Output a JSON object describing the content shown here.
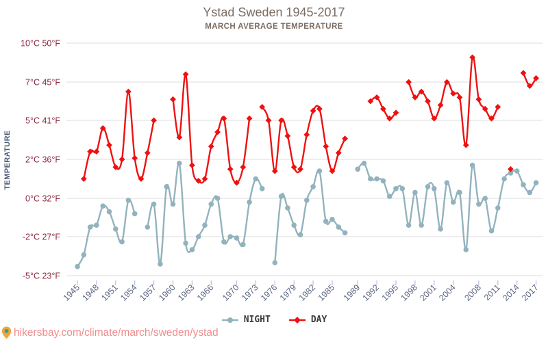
{
  "header": {
    "title": "Ystad Sweden 1945-2017",
    "subtitle": "MARCH AVERAGE TEMPERATURE"
  },
  "axes": {
    "y_title": "TEMPERATURE",
    "y_tick_labels": [
      "10°C 50°F",
      "7°C 45°F",
      "5°C 41°F",
      "2°C 36°F",
      "0°C 32°F",
      "-2°C 27°F",
      "-5°C 23°F"
    ],
    "x_tick_years": [
      1945,
      1948,
      1951,
      1954,
      1957,
      1960,
      1963,
      1966,
      1970,
      1973,
      1976,
      1979,
      1982,
      1985,
      1989,
      1992,
      1995,
      1998,
      2001,
      2004,
      2008,
      2011,
      2014,
      2017
    ]
  },
  "legend": {
    "night": "NIGHT",
    "day": "DAY"
  },
  "footer": {
    "url": "hikersbay.com/climate/march/sweden/ystad"
  },
  "colors": {
    "day": "#ee1111",
    "night": "#92b3bd",
    "grid": "#dcdcdc",
    "y_label": "#8e2840",
    "x_label": "#5a6580",
    "x_tick": "#b9c5dd",
    "title": "#7b6c62",
    "legend_text": "#3d3d3d",
    "footer_link": "#f08b8b",
    "pin_body": "#f2a33c",
    "pin_hole": "#1fa7a0"
  },
  "chart_data": {
    "type": "line",
    "title": "Ystad Sweden 1945-2017",
    "subtitle": "MARCH AVERAGE TEMPERATURE",
    "ylabel": "TEMPERATURE",
    "xlim": [
      1945,
      2017
    ],
    "ylim": [
      -5,
      10
    ],
    "grid": "horizontal-only",
    "legend_position": "bottom-center",
    "y_tick_values": [
      10,
      7,
      5,
      2,
      0,
      -2,
      -5
    ],
    "y_tick_labels": [
      "10°C 50°F",
      "7°C 45°F",
      "5°C 41°F",
      "2°C 36°F",
      "0°C 32°F",
      "-2°C 27°F",
      "-5°C 23°F"
    ],
    "x_tick_years": [
      1945,
      1948,
      1951,
      1954,
      1957,
      1960,
      1963,
      1966,
      1970,
      1973,
      1976,
      1979,
      1982,
      1985,
      1989,
      1992,
      1995,
      1998,
      2001,
      2004,
      2008,
      2011,
      2014,
      2017
    ],
    "note": "values in °C; segments are runs of consecutive yearly points separated by missing-data gaps",
    "series": [
      {
        "name": "NIGHT",
        "color": "#92b3bd",
        "marker": "circle",
        "segments": [
          [
            [
              1945,
              -4.3
            ],
            [
              1946,
              -3.4
            ],
            [
              1947,
              -1.5
            ],
            [
              1948,
              -1.4
            ],
            [
              1949,
              -0.4
            ],
            [
              1950,
              -0.7
            ],
            [
              1951,
              -1.6
            ],
            [
              1952,
              -2.4
            ],
            [
              1953,
              -0.1
            ],
            [
              1954,
              -0.8
            ]
          ],
          [
            [
              1956,
              -1.5
            ],
            [
              1957,
              -0.3
            ],
            [
              1958,
              -4.1
            ],
            [
              1959,
              0.6
            ],
            [
              1960,
              -0.3
            ],
            [
              1961,
              1.8
            ],
            [
              1962,
              -2.5
            ],
            [
              1963,
              -3.0
            ],
            [
              1964,
              -2.0
            ],
            [
              1965,
              -1.4
            ],
            [
              1966,
              -0.3
            ],
            [
              1967,
              0.0
            ],
            [
              1968,
              -2.4
            ],
            [
              1969,
              -2.0
            ],
            [
              1970,
              -2.1
            ],
            [
              1971,
              -2.6
            ],
            [
              1972,
              -0.2
            ],
            [
              1973,
              1.0
            ],
            [
              1974,
              0.5
            ]
          ],
          [
            [
              1976,
              -4.0
            ],
            [
              1977,
              0.1
            ],
            [
              1978,
              -0.5
            ],
            [
              1979,
              -1.4
            ],
            [
              1980,
              -1.9
            ],
            [
              1981,
              -0.1
            ],
            [
              1982,
              0.6
            ],
            [
              1983,
              1.4
            ],
            [
              1984,
              -1.2
            ],
            [
              1985,
              -1.1
            ],
            [
              1986,
              -1.5
            ],
            [
              1987,
              -1.8
            ]
          ],
          [
            [
              1989,
              1.5
            ],
            [
              1990,
              1.8
            ],
            [
              1991,
              1.0
            ],
            [
              1992,
              1.0
            ],
            [
              1993,
              0.9
            ],
            [
              1994,
              0.1
            ],
            [
              1995,
              0.5
            ],
            [
              1996,
              0.5
            ],
            [
              1997,
              -1.4
            ],
            [
              1998,
              0.3
            ],
            [
              1999,
              -1.4
            ],
            [
              2000,
              0.6
            ],
            [
              2001,
              0.5
            ],
            [
              2002,
              -1.6
            ],
            [
              2003,
              0.8
            ],
            [
              2004,
              -0.2
            ],
            [
              2005,
              0.3
            ],
            [
              2006,
              -3.0
            ],
            [
              2007,
              1.7
            ],
            [
              2008,
              -0.3
            ],
            [
              2009,
              0.0
            ],
            [
              2010,
              -1.7
            ],
            [
              2011,
              -0.5
            ],
            [
              2012,
              1.0
            ],
            [
              2013,
              1.3
            ],
            [
              2014,
              1.4
            ],
            [
              2015,
              0.7
            ],
            [
              2016,
              0.3
            ],
            [
              2017,
              0.8
            ]
          ]
        ]
      },
      {
        "name": "DAY",
        "color": "#ee1111",
        "marker": "diamond",
        "segments": [
          [
            [
              1946,
              1.0
            ],
            [
              1947,
              2.6
            ],
            [
              1948,
              2.6
            ],
            [
              1949,
              4.4
            ],
            [
              1950,
              3.1
            ],
            [
              1951,
              1.6
            ],
            [
              1952,
              2.0
            ],
            [
              1953,
              6.5
            ],
            [
              1954,
              2.1
            ],
            [
              1955,
              1.0
            ],
            [
              1956,
              2.5
            ],
            [
              1957,
              5.0
            ]
          ],
          [
            [
              1960,
              6.1
            ],
            [
              1961,
              3.7
            ],
            [
              1962,
              7.6
            ],
            [
              1963,
              1.7
            ],
            [
              1964,
              0.9
            ],
            [
              1965,
              1.0
            ],
            [
              1966,
              3.0
            ],
            [
              1967,
              4.1
            ],
            [
              1968,
              5.1
            ],
            [
              1969,
              1.5
            ],
            [
              1970,
              0.8
            ],
            [
              1971,
              1.6
            ],
            [
              1972,
              5.1
            ]
          ],
          [
            [
              1974,
              5.7
            ],
            [
              1975,
              5.0
            ],
            [
              1976,
              1.4
            ],
            [
              1977,
              5.0
            ],
            [
              1978,
              3.8
            ],
            [
              1979,
              1.6
            ],
            [
              1980,
              1.5
            ],
            [
              1981,
              3.9
            ],
            [
              1982,
              5.5
            ],
            [
              1983,
              5.6
            ],
            [
              1984,
              3.0
            ],
            [
              1985,
              1.4
            ],
            [
              1986,
              2.5
            ],
            [
              1987,
              3.6
            ]
          ],
          [
            [
              1991,
              6.0
            ],
            [
              1992,
              6.2
            ],
            [
              1993,
              5.6
            ],
            [
              1994,
              5.1
            ],
            [
              1995,
              5.4
            ]
          ],
          [
            [
              1997,
              7.0
            ],
            [
              1998,
              6.2
            ],
            [
              1999,
              6.5
            ],
            [
              2000,
              6.0
            ],
            [
              2001,
              5.1
            ],
            [
              2002,
              5.8
            ],
            [
              2003,
              7.0
            ],
            [
              2004,
              6.4
            ],
            [
              2005,
              6.2
            ],
            [
              2006,
              3.1
            ],
            [
              2007,
              8.9
            ],
            [
              2008,
              6.1
            ],
            [
              2009,
              5.6
            ],
            [
              2010,
              5.1
            ],
            [
              2011,
              5.7
            ]
          ],
          [
            [
              2013,
              1.5
            ]
          ],
          [
            [
              2015,
              7.7
            ],
            [
              2016,
              6.8
            ],
            [
              2017,
              7.3
            ]
          ]
        ]
      }
    ]
  }
}
